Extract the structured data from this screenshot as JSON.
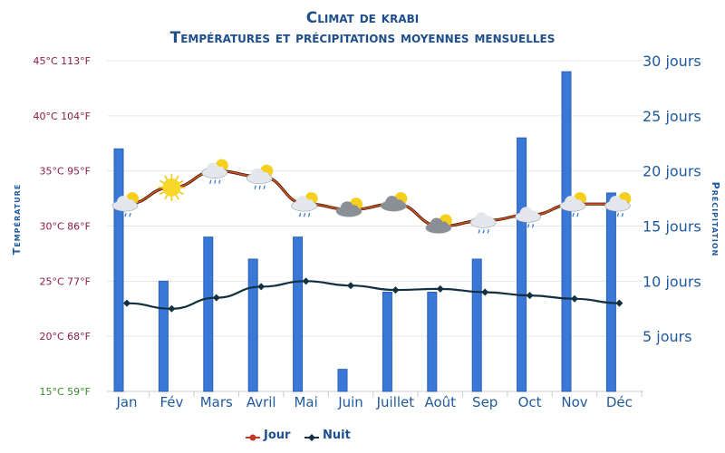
{
  "chart_data": {
    "type": "bar+line",
    "title": "Climat de krabi",
    "subtitle": "Températures et précipitations moyennes mensuelles",
    "categories": [
      "Jan",
      "Fév",
      "Mars",
      "Avril",
      "Mai",
      "Juin",
      "Juillet",
      "Août",
      "Sep",
      "Oct",
      "Nov",
      "Déc"
    ],
    "left_axis": {
      "label": "Température",
      "range": [
        15,
        45
      ],
      "ticks": [
        "15°C 59°F",
        "20°C 68°F",
        "25°C 77°F",
        "30°C 86°F",
        "35°C 95°F",
        "40°C 104°F",
        "45°C 113°F"
      ],
      "tick_values": [
        15,
        20,
        25,
        30,
        35,
        40,
        45
      ]
    },
    "right_axis": {
      "label": "Précipitation",
      "range": [
        0,
        30
      ],
      "ticks": [
        "5 jours",
        "10 jours",
        "15 jours",
        "20 jours",
        "25 jours",
        "30 jours"
      ],
      "tick_values": [
        5,
        10,
        15,
        20,
        25,
        30
      ]
    },
    "series": [
      {
        "name": "Jour",
        "type": "line",
        "axis": "left",
        "color": "#c0392b",
        "values": [
          32,
          33.5,
          35,
          34.5,
          32,
          31.5,
          32,
          30,
          30.5,
          31,
          32,
          32
        ]
      },
      {
        "name": "Nuit",
        "type": "line",
        "axis": "left",
        "color": "#123040",
        "values": [
          23,
          22.5,
          23.5,
          24.5,
          25,
          24.6,
          24.2,
          24.3,
          24,
          23.7,
          23.4,
          23
        ]
      },
      {
        "name": "Précipitation",
        "type": "bar",
        "axis": "right",
        "color": "#3a78d8",
        "values": [
          22,
          10,
          14,
          12,
          14,
          2,
          9,
          9,
          12,
          23,
          29,
          18
        ]
      }
    ],
    "weather_icons": [
      "cloud-sun-rain",
      "sun",
      "cloud-sun-rain",
      "cloud-sun-rain",
      "cloud-sun-rain",
      "sun-cloud",
      "sun-cloud",
      "sun-cloud",
      "cloud-rain",
      "cloud-rain",
      "cloud-sun-rain",
      "cloud-sun-rain"
    ],
    "grid": true,
    "legend_position": "bottom"
  }
}
